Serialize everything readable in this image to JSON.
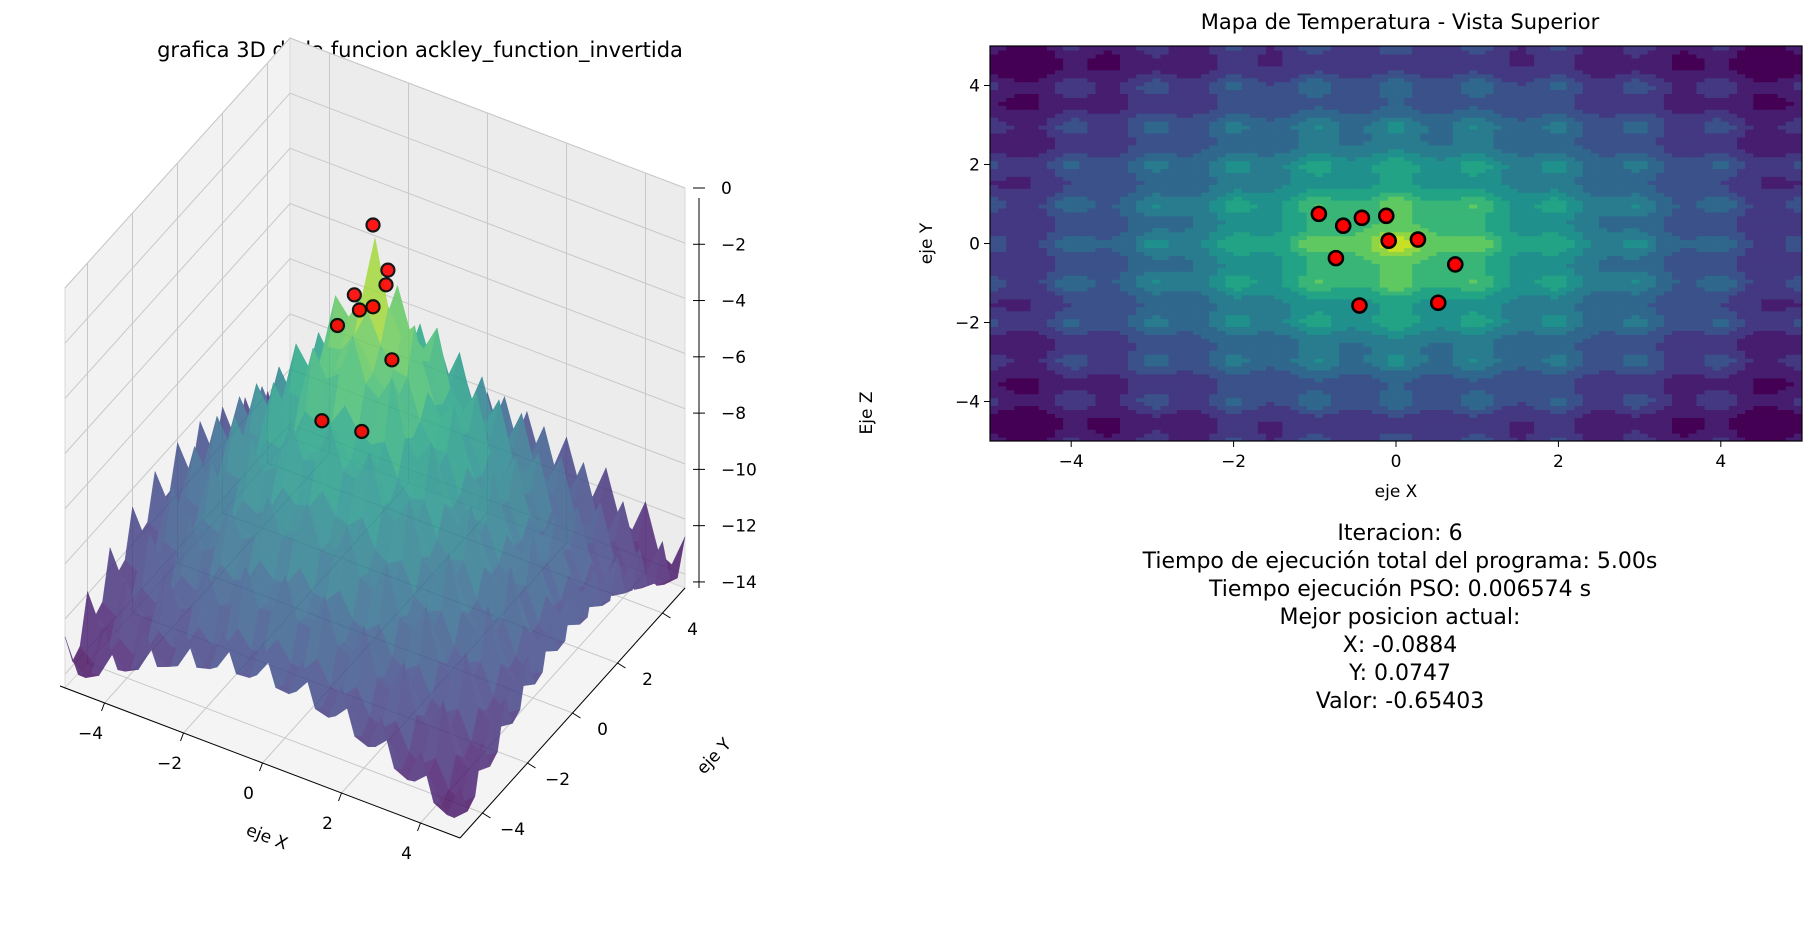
{
  "figure": {
    "title_3d": "grafica 3D de la funcion ackley_function_invertida",
    "title_2d": "Mapa de Temperatura - Vista Superior"
  },
  "info": {
    "iteration": "Iteracion: 6",
    "total_time": "Tiempo de ejecución total del programa: 5.00s",
    "pso_time": "Tiempo ejecución PSO: 0.006574 s",
    "best_header": "Mejor posicion actual:",
    "best_x": "X: -0.0884",
    "best_y": "Y: 0.0747",
    "best_value": "Valor: -0.65403"
  },
  "chart_data": [
    {
      "type": "surface",
      "title": "grafica 3D de la funcion ackley_function_invertida",
      "xlabel": "eje X",
      "ylabel": "eje Y",
      "zlabel": "Eje Z",
      "xlim": [
        -5,
        5
      ],
      "ylim": [
        -5,
        5
      ],
      "zlim": [
        -14.5,
        0
      ],
      "xticks": [
        "−4",
        "−2",
        "0",
        "2",
        "4"
      ],
      "yticks": [
        "−4",
        "−2",
        "0",
        "2",
        "4"
      ],
      "zticks": [
        "0",
        "−2",
        "−4",
        "−6",
        "−8",
        "−10",
        "−12",
        "−14"
      ],
      "colormap": "viridis",
      "grid": true
    },
    {
      "type": "heatmap",
      "title": "Mapa de Temperatura - Vista Superior",
      "xlabel": "eje X",
      "ylabel": "eje Y",
      "xlim": [
        -5,
        5
      ],
      "ylim": [
        -5,
        5
      ],
      "xticks": [
        "−4",
        "−2",
        "0",
        "2",
        "4"
      ],
      "yticks": [
        "−4",
        "−2",
        "0",
        "2",
        "4"
      ],
      "colormap": "viridis",
      "particles": [
        {
          "x": -0.95,
          "y": 0.75
        },
        {
          "x": -0.65,
          "y": 0.45
        },
        {
          "x": -0.42,
          "y": 0.65
        },
        {
          "x": -0.12,
          "y": 0.7
        },
        {
          "x": -0.09,
          "y": 0.07
        },
        {
          "x": 0.27,
          "y": 0.1
        },
        {
          "x": -0.74,
          "y": -0.37
        },
        {
          "x": 0.73,
          "y": -0.53
        },
        {
          "x": -0.45,
          "y": -1.57
        },
        {
          "x": 0.52,
          "y": -1.5
        }
      ],
      "particle_color": "#ff0000"
    }
  ]
}
